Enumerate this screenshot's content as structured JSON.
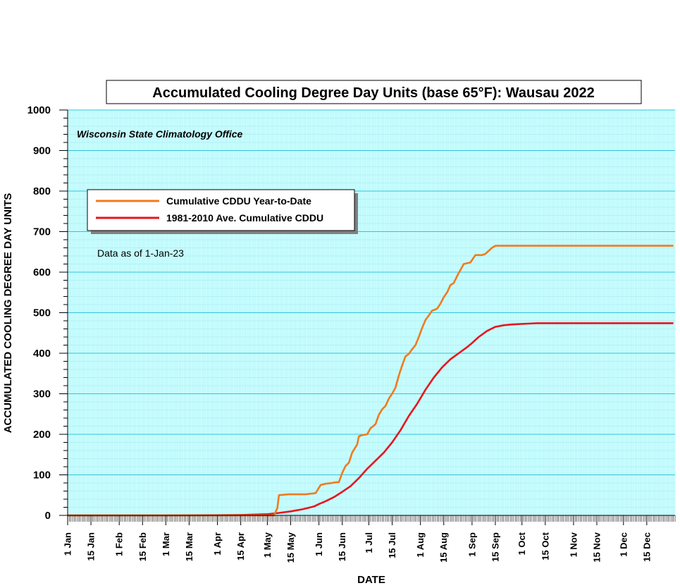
{
  "chart_data": {
    "type": "line",
    "title": "Accumulated Cooling Degree Day Units (base 65°F): Wausau 2022",
    "xlabel": "DATE",
    "ylabel": "ACCUMULATED COOLING DEGREE DAY UNITS",
    "source_note": "Wisconsin State Climatology Office",
    "as_of_note": "Data as of 1-Jan-23",
    "xlim": [
      "2022-01-01",
      "2022-12-31"
    ],
    "ylim": [
      0,
      1000
    ],
    "yticks": [
      0,
      100,
      200,
      300,
      400,
      500,
      600,
      700,
      800,
      900,
      1000
    ],
    "x_tick_labels": [
      {
        "date": "2022-01-01",
        "label": "1 Jan"
      },
      {
        "date": "2022-01-15",
        "label": "15 Jan"
      },
      {
        "date": "2022-02-01",
        "label": "1 Feb"
      },
      {
        "date": "2022-02-15",
        "label": "15 Feb"
      },
      {
        "date": "2022-03-01",
        "label": "1 Mar"
      },
      {
        "date": "2022-03-15",
        "label": "15 Mar"
      },
      {
        "date": "2022-04-01",
        "label": "1 Apr"
      },
      {
        "date": "2022-04-15",
        "label": "15 Apr"
      },
      {
        "date": "2022-05-01",
        "label": "1 May"
      },
      {
        "date": "2022-05-15",
        "label": "15 May"
      },
      {
        "date": "2022-06-01",
        "label": "1 Jun"
      },
      {
        "date": "2022-06-15",
        "label": "15 Jun"
      },
      {
        "date": "2022-07-01",
        "label": "1 Jul"
      },
      {
        "date": "2022-07-15",
        "label": "15 Jul"
      },
      {
        "date": "2022-08-01",
        "label": "1 Aug"
      },
      {
        "date": "2022-08-15",
        "label": "15 Aug"
      },
      {
        "date": "2022-09-01",
        "label": "1 Sep"
      },
      {
        "date": "2022-09-15",
        "label": "15 Sep"
      },
      {
        "date": "2022-10-01",
        "label": "1 Oct"
      },
      {
        "date": "2022-10-15",
        "label": "15 Oct"
      },
      {
        "date": "2022-11-01",
        "label": "1 Nov"
      },
      {
        "date": "2022-11-15",
        "label": "15 Nov"
      },
      {
        "date": "2022-12-01",
        "label": "1 Dec"
      },
      {
        "date": "2022-12-15",
        "label": "15 Dec"
      }
    ],
    "grid": true,
    "legend_position": "top-left",
    "colors": {
      "plot_background": "#ccffff",
      "grid_minor": "#9fe8f0",
      "grid_major": "#33c4dc"
    },
    "series": [
      {
        "name": "Cumulative CDDU Year-to-Date",
        "color": "#f07a1e",
        "x": [
          "2022-01-01",
          "2022-05-05",
          "2022-05-07",
          "2022-05-08",
          "2022-05-14",
          "2022-05-20",
          "2022-05-22",
          "2022-05-24",
          "2022-05-30",
          "2022-06-02",
          "2022-06-05",
          "2022-06-07",
          "2022-06-09",
          "2022-06-10",
          "2022-06-12",
          "2022-06-13",
          "2022-06-15",
          "2022-06-17",
          "2022-06-19",
          "2022-06-21",
          "2022-06-24",
          "2022-06-25",
          "2022-06-27",
          "2022-06-30",
          "2022-07-02",
          "2022-07-03",
          "2022-07-05",
          "2022-07-07",
          "2022-07-09",
          "2022-07-11",
          "2022-07-13",
          "2022-07-15",
          "2022-07-17",
          "2022-07-19",
          "2022-07-21",
          "2022-07-23",
          "2022-07-25",
          "2022-07-27",
          "2022-07-29",
          "2022-07-31",
          "2022-08-02",
          "2022-08-04",
          "2022-08-06",
          "2022-08-08",
          "2022-08-10",
          "2022-08-11",
          "2022-08-13",
          "2022-08-15",
          "2022-08-17",
          "2022-08-19",
          "2022-08-21",
          "2022-08-23",
          "2022-08-25",
          "2022-08-27",
          "2022-08-29",
          "2022-08-31",
          "2022-09-01",
          "2022-09-03",
          "2022-09-05",
          "2022-09-07",
          "2022-09-09",
          "2022-09-13",
          "2022-09-15",
          "2022-09-17",
          "2022-09-19",
          "2022-09-30",
          "2022-10-15",
          "2022-12-31"
        ],
        "values": [
          0,
          0,
          18,
          50,
          52,
          52,
          52,
          52,
          55,
          75,
          78,
          79,
          80,
          81,
          82,
          82,
          105,
          122,
          130,
          155,
          175,
          195,
          198,
          200,
          215,
          218,
          225,
          248,
          262,
          270,
          288,
          300,
          315,
          345,
          370,
          392,
          398,
          410,
          420,
          440,
          462,
          482,
          493,
          505,
          508,
          510,
          522,
          538,
          550,
          568,
          573,
          590,
          605,
          620,
          622,
          624,
          630,
          642,
          642,
          642,
          645,
          660,
          665,
          665,
          665,
          665,
          665,
          665
        ]
      },
      {
        "name": "1981-2010 Ave. Cumulative CDDU",
        "color": "#e8141c",
        "x": [
          "2022-01-01",
          "2022-03-01",
          "2022-04-01",
          "2022-04-15",
          "2022-05-01",
          "2022-05-08",
          "2022-05-15",
          "2022-05-22",
          "2022-05-29",
          "2022-06-01",
          "2022-06-05",
          "2022-06-10",
          "2022-06-15",
          "2022-06-20",
          "2022-06-25",
          "2022-06-30",
          "2022-07-05",
          "2022-07-10",
          "2022-07-15",
          "2022-07-20",
          "2022-07-25",
          "2022-07-30",
          "2022-08-04",
          "2022-08-09",
          "2022-08-14",
          "2022-08-19",
          "2022-08-24",
          "2022-08-29",
          "2022-09-01",
          "2022-09-05",
          "2022-09-10",
          "2022-09-15",
          "2022-09-20",
          "2022-09-25",
          "2022-09-30",
          "2022-10-05",
          "2022-10-10",
          "2022-10-15",
          "2022-10-31",
          "2022-12-31"
        ],
        "values": [
          0,
          0,
          0.5,
          1,
          3,
          6,
          10,
          15,
          22,
          28,
          35,
          45,
          58,
          72,
          92,
          115,
          135,
          155,
          180,
          210,
          245,
          275,
          310,
          340,
          365,
          385,
          400,
          415,
          425,
          440,
          455,
          465,
          469,
          471,
          472,
          473,
          474,
          474,
          474,
          474
        ]
      }
    ]
  }
}
